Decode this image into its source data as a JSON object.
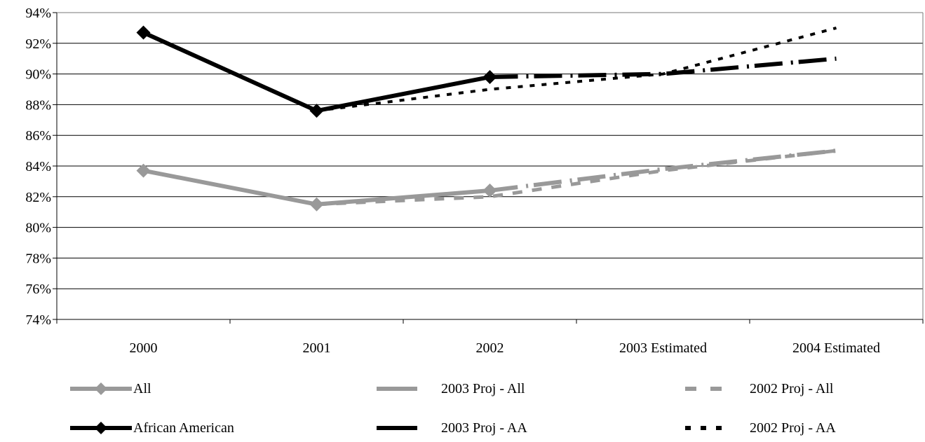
{
  "chart_data": {
    "type": "line",
    "title": "",
    "xlabel": "",
    "ylabel": "",
    "categories": [
      "2000",
      "2001",
      "2002",
      "2003 Estimated",
      "2004 Estimated"
    ],
    "y_ticks": [
      "74%",
      "76%",
      "78%",
      "80%",
      "82%",
      "84%",
      "86%",
      "88%",
      "90%",
      "92%",
      "94%"
    ],
    "ylim": [
      74,
      94
    ],
    "y_unit": "%",
    "grid": "horizontal",
    "legend_position": "bottom",
    "series": [
      {
        "name": "All",
        "values": [
          83.7,
          81.5,
          82.4,
          null,
          null
        ],
        "color": "#999999",
        "style": "solid-marker"
      },
      {
        "name": "2003 Proj - All",
        "values": [
          null,
          null,
          82.4,
          83.8,
          85.0
        ],
        "color": "#999999",
        "style": "long-dash"
      },
      {
        "name": "2002 Proj - All",
        "values": [
          null,
          81.5,
          82.0,
          83.7,
          85.0
        ],
        "color": "#999999",
        "style": "dash"
      },
      {
        "name": "African American",
        "values": [
          92.7,
          87.6,
          89.8,
          null,
          null
        ],
        "color": "#000000",
        "style": "solid-marker"
      },
      {
        "name": "2003 Proj - AA",
        "values": [
          null,
          null,
          89.8,
          90.0,
          91.0
        ],
        "color": "#000000",
        "style": "long-dash"
      },
      {
        "name": "2002 Proj - AA",
        "values": [
          null,
          87.6,
          89.0,
          90.0,
          93.0
        ],
        "color": "#000000",
        "style": "dot"
      }
    ]
  }
}
